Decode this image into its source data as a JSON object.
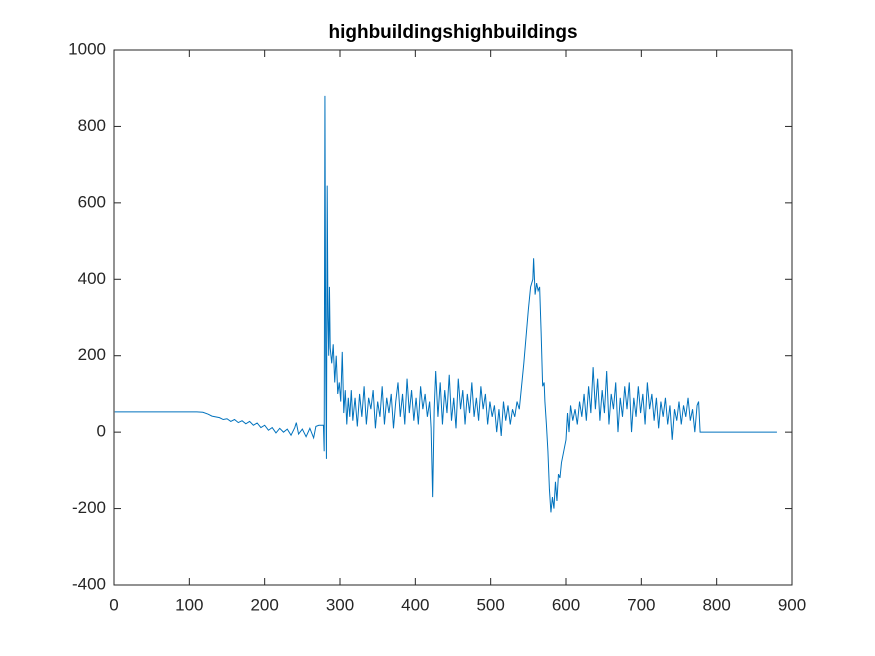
{
  "chart_data": {
    "type": "line",
    "title": "highbuildingshighbuildings",
    "series": [
      {
        "color": "#0072bd",
        "x": [
          1,
          110,
          118,
          125,
          130,
          140,
          145,
          150,
          155,
          160,
          165,
          170,
          175,
          180,
          185,
          190,
          195,
          200,
          205,
          210,
          215,
          220,
          225,
          230,
          235,
          240,
          242,
          245,
          250,
          255,
          260,
          265,
          268,
          272,
          278,
          279,
          280,
          281,
          282,
          283,
          284,
          285,
          286,
          287,
          289,
          291,
          293,
          295,
          297,
          299,
          301,
          303,
          305,
          307,
          309,
          311,
          313,
          315,
          317,
          320,
          323,
          326,
          329,
          332,
          335,
          338,
          341,
          344,
          347,
          350,
          353,
          356,
          359,
          362,
          365,
          368,
          371,
          374,
          377,
          380,
          383,
          386,
          389,
          392,
          395,
          398,
          401,
          404,
          407,
          410,
          413,
          416,
          419,
          421,
          423,
          425,
          427,
          430,
          433,
          436,
          439,
          442,
          445,
          448,
          451,
          454,
          457,
          460,
          463,
          466,
          469,
          472,
          475,
          478,
          481,
          484,
          487,
          490,
          493,
          496,
          499,
          502,
          505,
          508,
          511,
          514,
          517,
          520,
          523,
          526,
          529,
          532,
          535,
          538,
          541,
          544,
          547,
          550,
          553,
          556,
          557,
          559,
          561,
          563,
          565,
          567,
          569,
          571,
          572,
          574,
          576,
          578,
          580,
          582,
          584,
          586,
          588,
          590,
          592,
          594,
          596,
          598,
          600,
          602,
          604,
          606,
          609,
          612,
          615,
          618,
          621,
          624,
          627,
          630,
          633,
          636,
          639,
          642,
          645,
          648,
          651,
          654,
          657,
          660,
          663,
          666,
          669,
          672,
          675,
          678,
          681,
          684,
          687,
          690,
          693,
          696,
          699,
          702,
          705,
          708,
          711,
          714,
          717,
          720,
          723,
          726,
          729,
          732,
          735,
          738,
          741,
          744,
          747,
          750,
          753,
          756,
          759,
          762,
          765,
          768,
          771,
          774,
          776,
          778,
          880
        ],
        "values": [
          53,
          53,
          52,
          47,
          42,
          38,
          33,
          35,
          28,
          33,
          25,
          30,
          22,
          28,
          18,
          24,
          12,
          18,
          5,
          12,
          -2,
          10,
          0,
          8,
          -8,
          12,
          25,
          -5,
          8,
          -12,
          10,
          -15,
          15,
          18,
          18,
          -50,
          880,
          200,
          -70,
          645,
          300,
          200,
          380,
          220,
          180,
          230,
          130,
          200,
          100,
          130,
          80,
          210,
          50,
          110,
          20,
          90,
          40,
          110,
          30,
          90,
          15,
          100,
          40,
          120,
          20,
          90,
          60,
          110,
          10,
          80,
          40,
          120,
          20,
          90,
          50,
          100,
          10,
          80,
          130,
          40,
          100,
          20,
          140,
          50,
          110,
          30,
          90,
          20,
          120,
          60,
          100,
          40,
          80,
          10,
          -170,
          60,
          160,
          40,
          130,
          20,
          110,
          50,
          150,
          30,
          90,
          10,
          140,
          60,
          110,
          20,
          100,
          50,
          130,
          40,
          90,
          30,
          120,
          60,
          100,
          20,
          80,
          40,
          70,
          0,
          60,
          -10,
          80,
          30,
          70,
          20,
          60,
          40,
          80,
          60,
          120,
          180,
          250,
          320,
          380,
          400,
          455,
          360,
          390,
          370,
          380,
          260,
          120,
          130,
          80,
          20,
          -50,
          -150,
          -210,
          -170,
          -200,
          -130,
          -180,
          -110,
          -120,
          -80,
          -60,
          -40,
          -20,
          50,
          0,
          70,
          30,
          60,
          20,
          80,
          40,
          100,
          30,
          120,
          50,
          170,
          60,
          140,
          30,
          110,
          50,
          160,
          20,
          100,
          60,
          130,
          0,
          90,
          40,
          120,
          60,
          130,
          0,
          90,
          40,
          120,
          50,
          100,
          20,
          130,
          60,
          100,
          30,
          90,
          10,
          80,
          40,
          90,
          20,
          70,
          -20,
          60,
          30,
          80,
          20,
          70,
          40,
          90,
          30,
          60,
          0,
          70,
          80,
          0,
          0
        ]
      }
    ],
    "xlim": [
      0,
      900
    ],
    "xticks": [
      0,
      100,
      200,
      300,
      400,
      500,
      600,
      700,
      800,
      900
    ],
    "ylim": [
      -400,
      1000
    ],
    "yticks": [
      -400,
      -200,
      0,
      200,
      400,
      600,
      800,
      1000
    ]
  }
}
